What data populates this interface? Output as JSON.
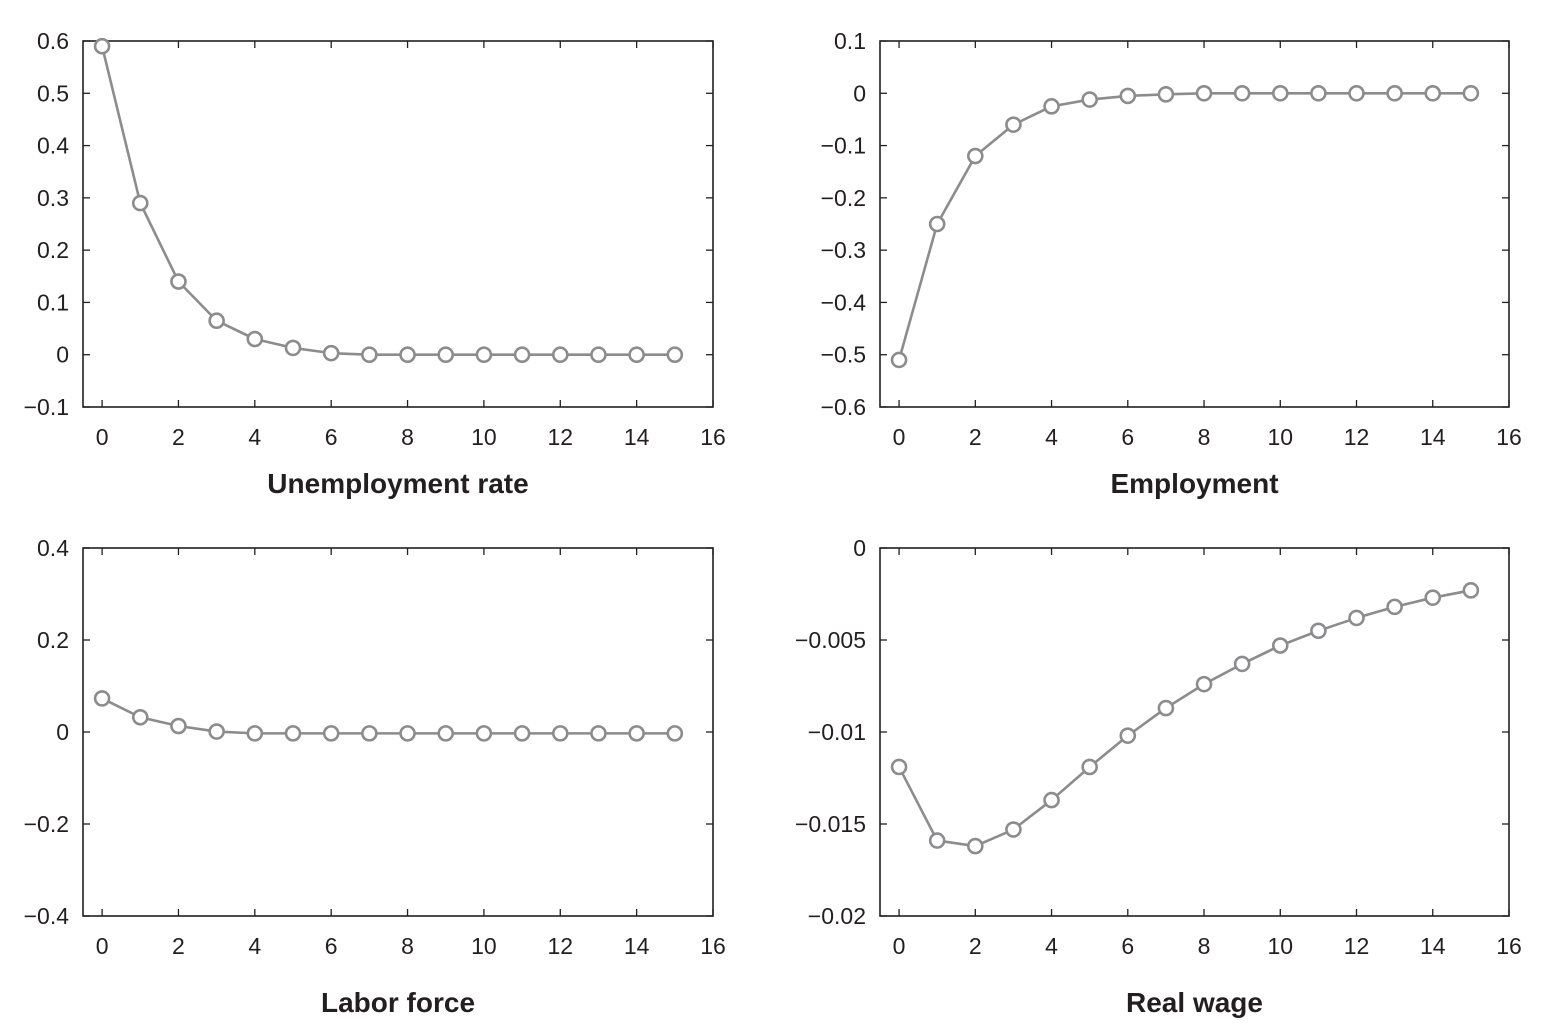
{
  "chart_data": [
    {
      "type": "line",
      "title": "Unemployment rate",
      "xlabel": "Unemployment rate",
      "ylabel": "",
      "xlim": [
        -0.5,
        16
      ],
      "ylim": [
        -0.1,
        0.6
      ],
      "xticks": [
        0,
        2,
        4,
        6,
        8,
        10,
        12,
        14,
        16
      ],
      "xtick_labels": [
        "0",
        "2",
        "4",
        "6",
        "8",
        "10",
        "12",
        "14",
        "16"
      ],
      "yticks": [
        -0.1,
        0,
        0.1,
        0.2,
        0.3,
        0.4,
        0.5,
        0.6
      ],
      "ytick_labels": [
        "−0.1",
        "0",
        "0.1",
        "0.2",
        "0.3",
        "0.4",
        "0.5",
        "0.6"
      ],
      "grid": false,
      "series_color": "#8c8c8e",
      "x": [
        0,
        1,
        2,
        3,
        4,
        5,
        6,
        7,
        8,
        9,
        10,
        11,
        12,
        13,
        14,
        15
      ],
      "series": [
        {
          "values": [
            0.59,
            0.29,
            0.14,
            0.065,
            0.03,
            0.013,
            0.003,
            0,
            0,
            0,
            0,
            0,
            0,
            0,
            0,
            0
          ]
        }
      ]
    },
    {
      "type": "line",
      "title": "Employment",
      "xlabel": "Employment",
      "ylabel": "",
      "xlim": [
        -0.5,
        16
      ],
      "ylim": [
        -0.6,
        0.1
      ],
      "xticks": [
        0,
        2,
        4,
        6,
        8,
        10,
        12,
        14,
        16
      ],
      "xtick_labels": [
        "0",
        "2",
        "4",
        "6",
        "8",
        "10",
        "12",
        "14",
        "16"
      ],
      "yticks": [
        -0.6,
        -0.5,
        -0.4,
        -0.3,
        -0.2,
        -0.1,
        0,
        0.1
      ],
      "ytick_labels": [
        "−0.6",
        "−0.5",
        "−0.4",
        "−0.3",
        "−0.2",
        "−0.1",
        "0",
        "0.1"
      ],
      "grid": false,
      "series_color": "#8c8c8e",
      "x": [
        0,
        1,
        2,
        3,
        4,
        5,
        6,
        7,
        8,
        9,
        10,
        11,
        12,
        13,
        14,
        15
      ],
      "series": [
        {
          "values": [
            -0.51,
            -0.25,
            -0.12,
            -0.06,
            -0.025,
            -0.012,
            -0.005,
            -0.002,
            0,
            0,
            0,
            0,
            0,
            0,
            0,
            0
          ]
        }
      ]
    },
    {
      "type": "line",
      "title": "Labor force",
      "xlabel": "Labor force",
      "ylabel": "",
      "xlim": [
        -0.5,
        16
      ],
      "ylim": [
        -0.4,
        0.4
      ],
      "xticks": [
        0,
        2,
        4,
        6,
        8,
        10,
        12,
        14,
        16
      ],
      "xtick_labels": [
        "0",
        "2",
        "4",
        "6",
        "8",
        "10",
        "12",
        "14",
        "16"
      ],
      "yticks": [
        -0.4,
        -0.2,
        0,
        0.2,
        0.4
      ],
      "ytick_labels": [
        "−0.4",
        "−0.2",
        "0",
        "0.2",
        "0.4"
      ],
      "grid": false,
      "series_color": "#8c8c8e",
      "x": [
        0,
        1,
        2,
        3,
        4,
        5,
        6,
        7,
        8,
        9,
        10,
        11,
        12,
        13,
        14,
        15
      ],
      "series": [
        {
          "values": [
            0.073,
            0.032,
            0.013,
            0.001,
            -0.003,
            -0.003,
            -0.003,
            -0.003,
            -0.003,
            -0.003,
            -0.003,
            -0.003,
            -0.003,
            -0.003,
            -0.003,
            -0.003
          ]
        }
      ]
    },
    {
      "type": "line",
      "title": "Real wage",
      "xlabel": "Real wage",
      "ylabel": "",
      "xlim": [
        -0.5,
        16
      ],
      "ylim": [
        -0.02,
        0
      ],
      "xticks": [
        0,
        2,
        4,
        6,
        8,
        10,
        12,
        14,
        16
      ],
      "xtick_labels": [
        "0",
        "2",
        "4",
        "6",
        "8",
        "10",
        "12",
        "14",
        "16"
      ],
      "yticks": [
        -0.02,
        -0.015,
        -0.01,
        -0.005,
        0
      ],
      "ytick_labels": [
        "−0.02",
        "−0.015",
        "−0.01",
        "−0.005",
        "0"
      ],
      "grid": false,
      "series_color": "#8c8c8e",
      "x": [
        0,
        1,
        2,
        3,
        4,
        5,
        6,
        7,
        8,
        9,
        10,
        11,
        12,
        13,
        14,
        15
      ],
      "series": [
        {
          "values": [
            -0.0119,
            -0.0159,
            -0.0162,
            -0.0153,
            -0.0137,
            -0.0119,
            -0.0102,
            -0.0087,
            -0.0074,
            -0.0063,
            -0.0053,
            -0.0045,
            -0.0038,
            -0.0032,
            -0.0027,
            -0.0023
          ]
        }
      ]
    }
  ]
}
